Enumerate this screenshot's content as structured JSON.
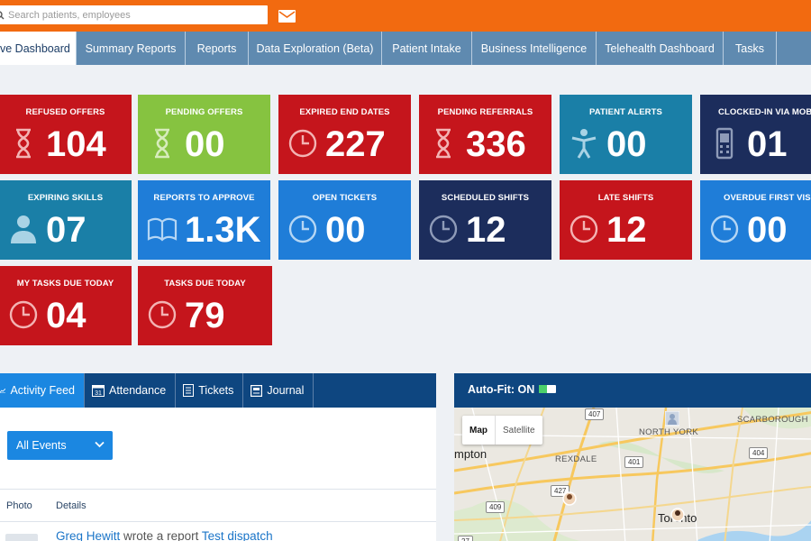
{
  "header": {
    "search_placeholder": "Search patients, employees",
    "accent": "#f26a10"
  },
  "nav": {
    "tabs": [
      {
        "label": "ve Dashboard",
        "active": true
      },
      {
        "label": "Summary Reports"
      },
      {
        "label": "Reports"
      },
      {
        "label": "Data Exploration (Beta)"
      },
      {
        "label": "Patient Intake"
      },
      {
        "label": "Business Intelligence"
      },
      {
        "label": "Telehealth Dashboard"
      },
      {
        "label": "Tasks"
      }
    ]
  },
  "tiles": [
    {
      "label": "REFUSED OFFERS",
      "value": "104",
      "color": "red",
      "icon": "hourglass-icon"
    },
    {
      "label": "PENDING OFFERS",
      "value": "00",
      "color": "green",
      "icon": "hourglass-icon"
    },
    {
      "label": "EXPIRED END DATES",
      "value": "227",
      "color": "red",
      "icon": "clock-icon"
    },
    {
      "label": "PENDING REFERRALS",
      "value": "336",
      "color": "red",
      "icon": "hourglass-icon"
    },
    {
      "label": "PATIENT ALERTS",
      "value": "00",
      "color": "teal",
      "icon": "person-icon"
    },
    {
      "label": "CLOCKED-IN VIA MOBIL",
      "value": "01",
      "color": "navy",
      "icon": "phone-icon"
    },
    {
      "label": "EXPIRING SKILLS",
      "value": "07",
      "color": "teal",
      "icon": "user-icon"
    },
    {
      "label": "REPORTS TO APPROVE",
      "value": "1.3K",
      "color": "blue",
      "icon": "book-icon"
    },
    {
      "label": "OPEN TICKETS",
      "value": "00",
      "color": "blue",
      "icon": "clock-icon"
    },
    {
      "label": "SCHEDULED SHIFTS",
      "value": "12",
      "color": "navy",
      "icon": "clock-icon"
    },
    {
      "label": "LATE SHIFTS",
      "value": "12",
      "color": "red",
      "icon": "clock-icon"
    },
    {
      "label": "OVERDUE FIRST VISIT",
      "value": "00",
      "color": "blue",
      "icon": "clock-icon"
    },
    {
      "label": "MY TASKS DUE TODAY",
      "value": "04",
      "color": "red",
      "icon": "clock-icon"
    },
    {
      "label": "TASKS DUE TODAY",
      "value": "79",
      "color": "red",
      "icon": "clock-icon"
    }
  ],
  "feed": {
    "tabs": [
      {
        "label": "Activity Feed",
        "icon": "chart-line-icon",
        "active": true
      },
      {
        "label": "Attendance",
        "icon": "calendar-icon",
        "calendar_day": "31"
      },
      {
        "label": "Tickets",
        "icon": "list-icon"
      },
      {
        "label": "Journal",
        "icon": "journal-icon"
      }
    ],
    "filter": "All Events",
    "columns": [
      "Photo",
      "Details"
    ],
    "rows": [
      {
        "name": "Greg Hewitt",
        "action": "wrote a report",
        "item": "Test dispatch"
      }
    ]
  },
  "map": {
    "autofit_label": "Auto-Fit: ON",
    "autofit_on": true,
    "map_types": [
      "Map",
      "Satellite"
    ],
    "places": [
      "mpton",
      "NORTH YORK",
      "REXDALE",
      "SCARBOROUGH",
      "Toronto"
    ],
    "highways": [
      "407",
      "401",
      "427",
      "409",
      "404",
      "27"
    ]
  }
}
